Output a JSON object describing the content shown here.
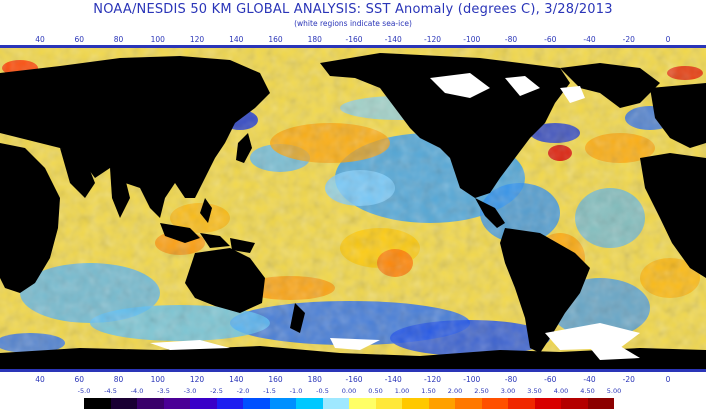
{
  "title": "NOAA/NESDIS 50 KM GLOBAL ANALYSIS: SST Anomaly (degrees C), 3/28/2013",
  "subtitle": "(white regions indicate sea-ice)",
  "longitude_labels": [
    "40",
    "60",
    "80",
    "100",
    "120",
    "140",
    "160",
    "180",
    "-160",
    "-140",
    "-120",
    "-100",
    "-80",
    "-60",
    "-40",
    "-20",
    "0"
  ],
  "scale": {
    "labels": [
      "-5.0",
      "-4.5",
      "-4.0",
      "-3.5",
      "-3.0",
      "-2.5",
      "-2.0",
      "-1.5",
      "-1.0",
      "-0.5",
      "0.00",
      "0.50",
      "1.00",
      "1.50",
      "2.00",
      "2.50",
      "3.00",
      "3.50",
      "4.00",
      "4.50",
      "5.00"
    ],
    "colors": [
      "#000000",
      "#1a0033",
      "#3a006a",
      "#4b0096",
      "#3a00c8",
      "#1e1ef0",
      "#0050ff",
      "#0090ff",
      "#00c8ff",
      "#9fe8ff",
      "#ffff66",
      "#ffe83a",
      "#ffc800",
      "#ffa000",
      "#ff7800",
      "#ff5000",
      "#f02800",
      "#d80000",
      "#b40000",
      "#8c0000"
    ]
  },
  "colors": {
    "label_blue": "#2a35b8",
    "land": "#000000",
    "sea_ice": "#ffffff",
    "ocean_neutral": "#f2d84a"
  }
}
